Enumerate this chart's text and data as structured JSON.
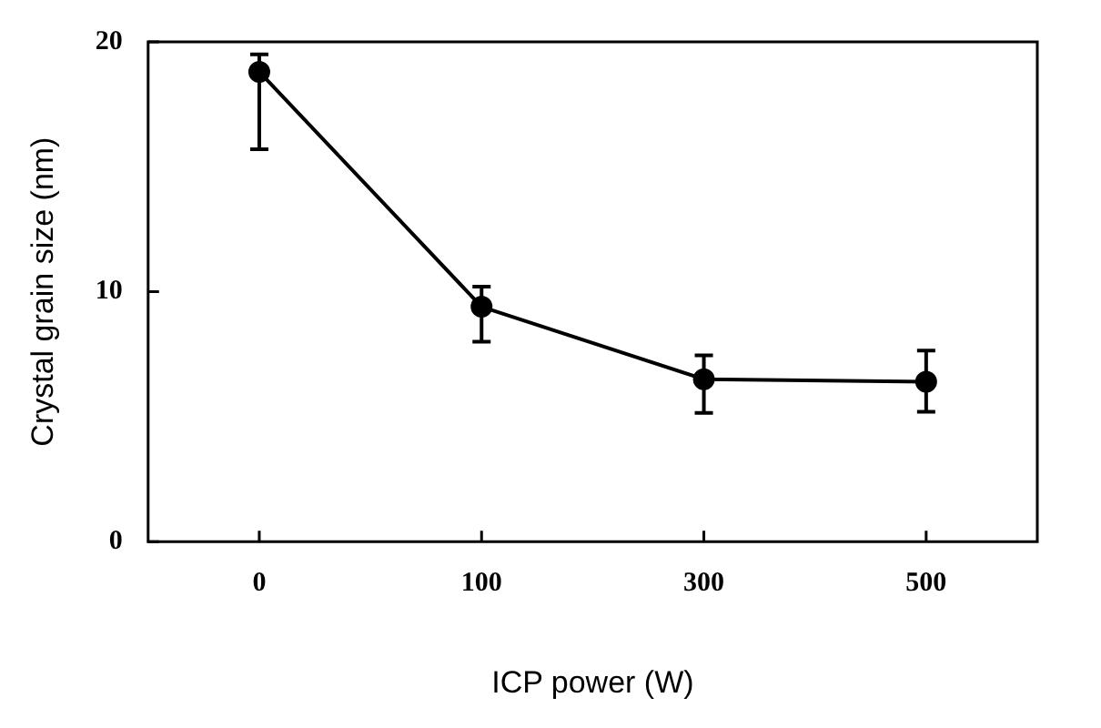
{
  "chart_data": {
    "type": "line",
    "xlabel": "ICP power (W)",
    "ylabel": "Crystal grain size (nm)",
    "categories": [
      "0",
      "100",
      "300",
      "500"
    ],
    "series": [
      {
        "color": "#000000",
        "values": [
          18.8,
          9.4,
          6.5,
          6.4
        ],
        "errors": [
          [
            15.7,
            19.5
          ],
          [
            8.0,
            10.2
          ],
          [
            5.15,
            7.45
          ],
          [
            5.2,
            7.65
          ]
        ]
      }
    ],
    "ylim": [
      0,
      20
    ],
    "yticks": [
      0,
      10,
      20
    ],
    "grid": false,
    "legend": false,
    "marker": "circle",
    "line_style": "solid"
  }
}
